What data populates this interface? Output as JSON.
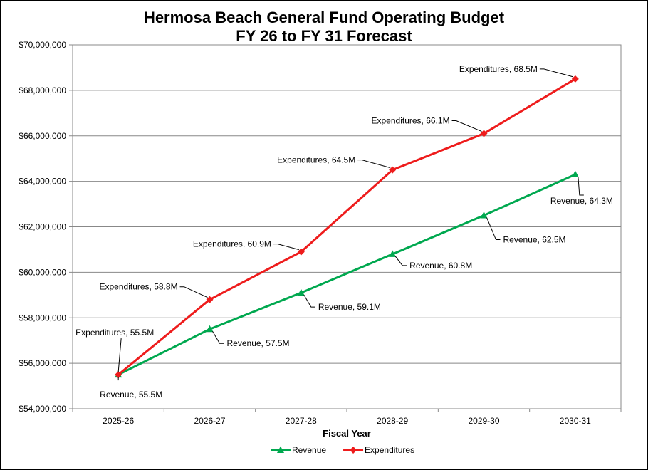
{
  "chart_data": {
    "type": "line",
    "title_line1": "Hermosa Beach General Fund Operating Budget",
    "title_line2": "FY 26 to FY 31 Forecast",
    "xlabel": "Fiscal Year",
    "ylabel": "",
    "categories": [
      "2025-26",
      "2026-27",
      "2027-28",
      "2028-29",
      "2029-30",
      "2030-31"
    ],
    "ylim": [
      54000000,
      70000000
    ],
    "y_ticks": [
      54000000,
      56000000,
      58000000,
      60000000,
      62000000,
      64000000,
      66000000,
      68000000,
      70000000
    ],
    "y_tick_labels": [
      "$54,000,000",
      "$56,000,000",
      "$58,000,000",
      "$60,000,000",
      "$62,000,000",
      "$64,000,000",
      "$66,000,000",
      "$68,000,000",
      "$70,000,000"
    ],
    "grid": true,
    "legend_position": "bottom",
    "series": [
      {
        "name": "Revenue",
        "color": "#00a84f",
        "marker": "triangle",
        "values": [
          55500000,
          57500000,
          59100000,
          60800000,
          62500000,
          64300000
        ],
        "labels": [
          "Revenue,  55.5M",
          "Revenue,  57.5M",
          "Revenue,  59.1M",
          "Revenue,  60.8M",
          "Revenue,  62.5M",
          "Revenue,  64.3M"
        ]
      },
      {
        "name": "Expenditures",
        "color": "#ee1c1c",
        "marker": "diamond",
        "values": [
          55500000,
          58800000,
          60900000,
          64500000,
          66100000,
          68500000
        ],
        "labels": [
          "Expenditures,  55.5M",
          "Expenditures,  58.8M",
          "Expenditures,  60.9M",
          "Expenditures,  64.5M",
          "Expenditures,  66.1M",
          "Expenditures,  68.5M"
        ]
      }
    ]
  }
}
